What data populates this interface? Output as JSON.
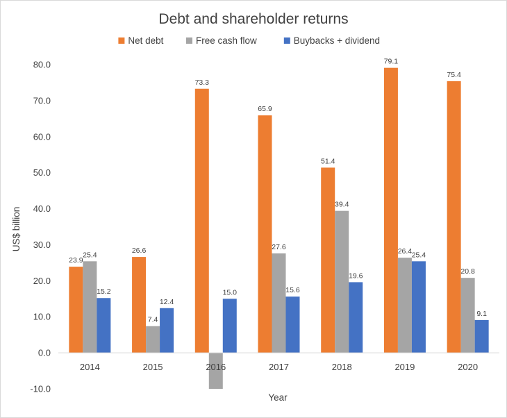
{
  "chart_data": {
    "type": "bar",
    "title": "Debt and shareholder returns",
    "xlabel": "Year",
    "ylabel": "US$ billion",
    "categories": [
      "2014",
      "2015",
      "2016",
      "2017",
      "2018",
      "2019",
      "2020"
    ],
    "series": [
      {
        "name": "Net debt",
        "color": "#ED7D31",
        "values": [
          23.9,
          26.6,
          73.3,
          65.9,
          51.4,
          79.1,
          75.4
        ],
        "labels": [
          "23.9",
          "26.6",
          "73.3",
          "65.9",
          "51.4",
          "79.1",
          "75.4"
        ]
      },
      {
        "name": "Free cash flow",
        "color": "#A5A5A5",
        "values": [
          25.4,
          7.4,
          -10.0,
          27.6,
          39.4,
          26.4,
          20.8
        ],
        "labels": [
          "25.4",
          "7.4",
          "",
          "27.6",
          "39.4",
          "26.4",
          "20.8"
        ]
      },
      {
        "name": "Buybacks + dividend",
        "color": "#4472C4",
        "values": [
          15.2,
          12.4,
          15.0,
          15.6,
          19.6,
          25.4,
          9.1
        ],
        "labels": [
          "15.2",
          "12.4",
          "15.0",
          "15.6",
          "19.6",
          "25.4",
          "9.1"
        ]
      }
    ],
    "ylim": [
      -10,
      80
    ],
    "yticks": [
      "-10.0",
      "0.0",
      "10.0",
      "20.0",
      "30.0",
      "40.0",
      "50.0",
      "60.0",
      "70.0",
      "80.0"
    ],
    "legend": "top",
    "grid": false
  }
}
